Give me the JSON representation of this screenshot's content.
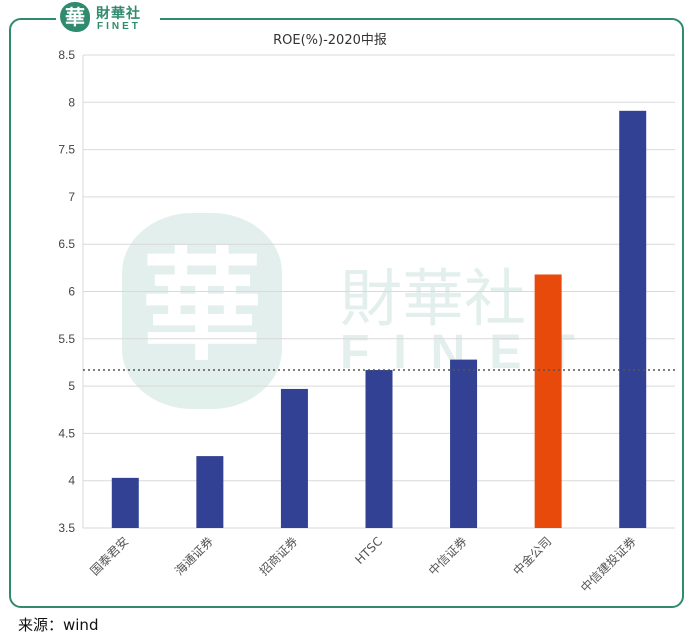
{
  "logo": {
    "emblem_char": "華",
    "cn_text": "財華社",
    "en_text": "FINET"
  },
  "watermark": {
    "emblem_char": "華",
    "cn_text": "財華社",
    "en_text": "FINET"
  },
  "source": "来源：wind",
  "colors": {
    "frame": "#2f8a6e",
    "bar": "#324193",
    "highlight_bar": "#e84a0c",
    "grid": "#d9d9d9",
    "reference_line": "#555555",
    "watermark": "#dfeeea"
  },
  "chart_data": {
    "type": "bar",
    "title": "ROE(%)-2020中报",
    "categories": [
      "国泰君安",
      "海通证券",
      "招商证券",
      "HTSC",
      "中信证券",
      "中金公司",
      "中信建投证券"
    ],
    "values": [
      4.03,
      4.26,
      4.97,
      5.17,
      5.28,
      6.18,
      7.91
    ],
    "highlight": "中金公司",
    "reference_line": 5.17,
    "ylim": [
      3.5,
      8.5
    ],
    "yticks": [
      "3.5",
      "4",
      "4.5",
      "5",
      "5.5",
      "6",
      "6.5",
      "7",
      "7.5",
      "8",
      "8.5"
    ],
    "xlabel": "",
    "ylabel": "",
    "grid": true,
    "legend": "none"
  }
}
